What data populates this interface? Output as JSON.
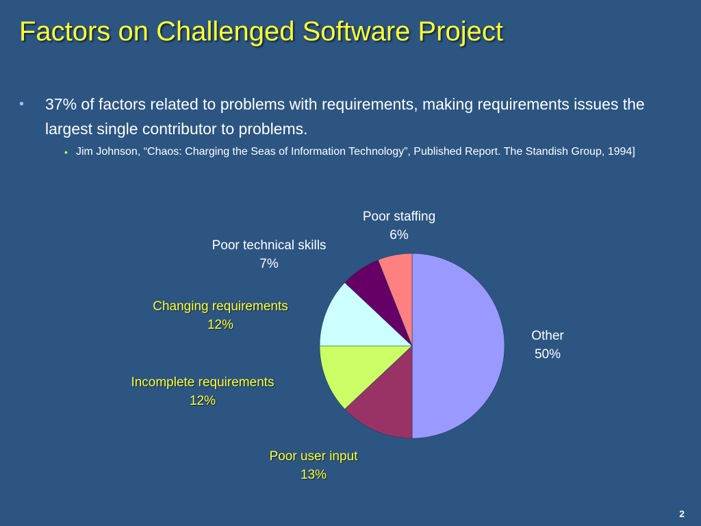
{
  "slide": {
    "title": "Factors on Challenged Software Project",
    "bullet": "37% of factors related to problems with requirements, making requirements issues the largest single contributor to problems.",
    "sub_bullet": "Jim Johnson, “Chaos: Charging the Seas of Information Technology”,  Published Report. The Standish Group, 1994]",
    "page_number": "2"
  },
  "chart_data": {
    "type": "pie",
    "slices": [
      {
        "label": "Other",
        "value": 50,
        "value_label": "50%",
        "color": "#9999ff",
        "label_color": "#ffffff"
      },
      {
        "label": "Poor user input",
        "value": 13,
        "value_label": "13%",
        "color": "#993366",
        "label_color": "#ffff33"
      },
      {
        "label": "Incomplete requirements",
        "value": 12,
        "value_label": "12%",
        "color": "#ccff66",
        "label_color": "#ffff33"
      },
      {
        "label": "Changing requirements",
        "value": 12,
        "value_label": "12%",
        "color": "#ccffff",
        "label_color": "#ffff33"
      },
      {
        "label": "Poor technical skills",
        "value": 7,
        "value_label": "7%",
        "color": "#660066",
        "label_color": "#ffffff"
      },
      {
        "label": "Poor staffing",
        "value": 6,
        "value_label": "6%",
        "color": "#ff8080",
        "label_color": "#ffffff"
      }
    ]
  }
}
